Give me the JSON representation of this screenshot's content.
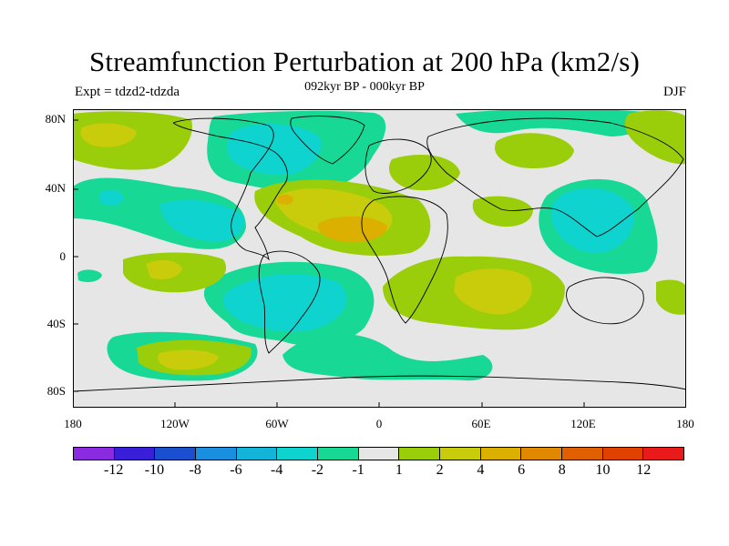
{
  "title": "Streamfunction Perturbation at 200 hPa (km2/s)",
  "subtitle": "092kyr BP - 000kyr BP",
  "left_label": "Expt = tdzd2-tdzda",
  "right_label": "DJF",
  "lat_labels": [
    "80N",
    "40N",
    "0",
    "40S",
    "80S"
  ],
  "lon_labels": [
    "180",
    "120W",
    "60W",
    "0",
    "60E",
    "120E",
    "180"
  ],
  "colorbar": {
    "colors": [
      "#8a2be2",
      "#3a1fd8",
      "#1a4fd0",
      "#1a8fe0",
      "#12b4d8",
      "#0fd3cf",
      "#18d896",
      "#e6e6e6",
      "#9acd0a",
      "#c8cc0a",
      "#dcb000",
      "#e08800",
      "#e06000",
      "#e04000",
      "#e81a1a"
    ],
    "labels": [
      "-12",
      "-10",
      "-8",
      "-6",
      "-4",
      "-2",
      "-1",
      "1",
      "2",
      "4",
      "6",
      "8",
      "10",
      "12"
    ]
  },
  "map_colors": {
    "ocean": "#e6e6e6",
    "neg1": "#18d896",
    "neg2": "#0fd3cf",
    "pos1": "#9acd0a",
    "pos2": "#c8cc0a",
    "pos3": "#dcb000",
    "coast": "#000000"
  }
}
